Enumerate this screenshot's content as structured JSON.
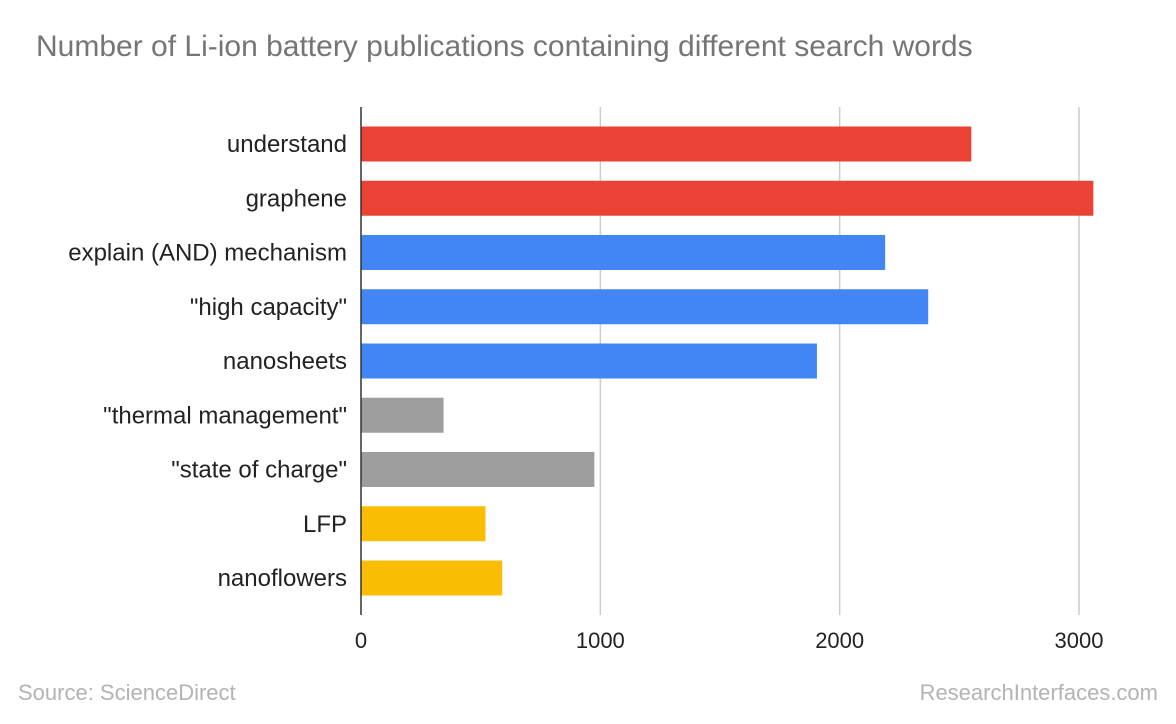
{
  "chart_data": {
    "type": "bar",
    "orientation": "horizontal",
    "title": "Number of Li-ion battery publications containing different search words",
    "categories": [
      "understand",
      "graphene",
      "explain (AND) mechanism",
      "\"high capacity\"",
      "nanosheets",
      "\"thermal management\"",
      "\"state of charge\"",
      "LFP",
      "nanoflowers"
    ],
    "values": [
      2550,
      3060,
      2190,
      2370,
      1905,
      345,
      975,
      520,
      590
    ],
    "bar_colors": [
      "#ea4335",
      "#ea4335",
      "#4285f4",
      "#4285f4",
      "#4285f4",
      "#9e9e9e",
      "#9e9e9e",
      "#fbbc04",
      "#fbbc04"
    ],
    "xlim": [
      0,
      3000
    ],
    "xticks": [
      0,
      1000,
      2000,
      3000
    ],
    "xtick_labels": [
      "0",
      "1000",
      "2000",
      "3000"
    ],
    "grid": true,
    "legend": "none",
    "xlabel": "",
    "ylabel": ""
  },
  "footer": {
    "source": "Source: ScienceDirect",
    "credit": "ResearchInterfaces.com"
  }
}
